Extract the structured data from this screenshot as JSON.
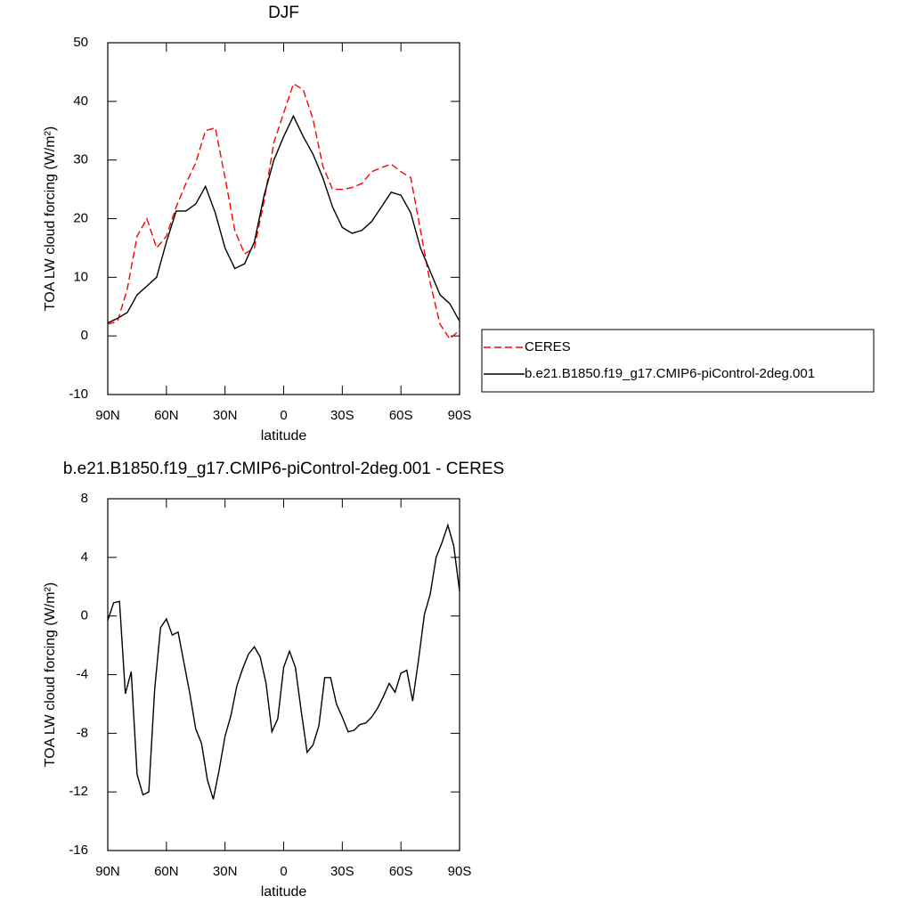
{
  "chart_data": [
    {
      "type": "line",
      "title": "DJF",
      "xlabel": "latitude",
      "ylabel": "TOA LW cloud forcing (W/m²)",
      "x": [
        90,
        85,
        80,
        75,
        70,
        65,
        60,
        55,
        50,
        45,
        40,
        35,
        30,
        25,
        20,
        15,
        10,
        5,
        0,
        -5,
        -10,
        -15,
        -20,
        -25,
        -30,
        -35,
        -40,
        -45,
        -50,
        -55,
        -60,
        -65,
        -70,
        -75,
        -80,
        -85,
        -90
      ],
      "series": [
        {
          "name": "CERES",
          "color": "#ff0000",
          "line_style": "dashed",
          "values": [
            2,
            2.5,
            8,
            17,
            20,
            15,
            17,
            22,
            26,
            29.5,
            35,
            35.5,
            27,
            18,
            14,
            15,
            23,
            33,
            38,
            43,
            42,
            37,
            29,
            25,
            25,
            25.3,
            26,
            28,
            28.7,
            29.3,
            28,
            27,
            18,
            9,
            2,
            -0.5,
            1
          ]
        },
        {
          "name": "b.e21.B1850.f19_g17.CMIP6-piControl-2deg.001",
          "color": "#000000",
          "line_style": "solid",
          "values": [
            2.2,
            3,
            4,
            7,
            8.5,
            10,
            16,
            21.3,
            21.3,
            22.5,
            25.5,
            21,
            15,
            11.5,
            12.3,
            16,
            24,
            30,
            34,
            37.5,
            34,
            31,
            27,
            22,
            18.5,
            17.5,
            18,
            19.5,
            22,
            24.5,
            24,
            21,
            15,
            11,
            7,
            5.5,
            2.5
          ]
        }
      ],
      "xlim": [
        90,
        -90
      ],
      "xticks": [
        {
          "value": 90,
          "label": "90N"
        },
        {
          "value": 60,
          "label": "60N"
        },
        {
          "value": 30,
          "label": "30N"
        },
        0,
        {
          "value": -30,
          "label": "30S"
        },
        {
          "value": -60,
          "label": "60S"
        },
        {
          "value": -90,
          "label": "90S"
        }
      ],
      "ylim": [
        -10,
        50
      ],
      "yticks": [
        -10,
        0,
        10,
        20,
        30,
        40,
        50
      ],
      "legend": "right"
    },
    {
      "type": "line",
      "title": "b.e21.B1850.f19_g17.CMIP6-piControl-2deg.001 - CERES",
      "xlabel": "latitude",
      "ylabel": "TOA LW cloud forcing (W/m²)",
      "x": [
        90,
        87,
        84,
        81,
        78,
        75,
        72,
        69,
        66,
        63,
        60,
        57,
        54,
        51,
        48,
        45,
        42,
        39,
        36,
        33,
        30,
        27,
        24,
        21,
        18,
        15,
        12,
        9,
        6,
        3,
        0,
        -3,
        -6,
        -9,
        -12,
        -15,
        -18,
        -21,
        -24,
        -27,
        -30,
        -33,
        -36,
        -39,
        -42,
        -45,
        -48,
        -51,
        -54,
        -57,
        -60,
        -63,
        -66,
        -69,
        -72,
        -75,
        -78,
        -81,
        -84,
        -87,
        -90
      ],
      "series": [
        {
          "color": "#000000",
          "line_style": "solid",
          "values": [
            -0.3,
            0.9,
            1,
            -5.3,
            -3.8,
            -10.8,
            -12.2,
            -12,
            -5,
            -0.8,
            -0.2,
            -1.3,
            -1.1,
            -3.2,
            -5.3,
            -7.7,
            -8.7,
            -11.2,
            -12.5,
            -10.5,
            -8.2,
            -6.8,
            -4.8,
            -3.6,
            -2.6,
            -2.1,
            -2.8,
            -4.6,
            -7.9,
            -7,
            -3.5,
            -2.4,
            -3.5,
            -6.5,
            -9.3,
            -8.8,
            -7.5,
            -4.2,
            -4.2,
            -6,
            -6.9,
            -7.9,
            -7.8,
            -7.4,
            -7.3,
            -6.9,
            -6.3,
            -5.5,
            -4.6,
            -5.2,
            -3.9,
            -3.7,
            -5.8,
            -3,
            0.1,
            1.5,
            4,
            5,
            6.2,
            4.8,
            1.7
          ]
        }
      ],
      "xlim": [
        90,
        -90
      ],
      "xticks": [
        {
          "value": 90,
          "label": "90N"
        },
        {
          "value": 60,
          "label": "60N"
        },
        {
          "value": 30,
          "label": "30N"
        },
        0,
        {
          "value": -30,
          "label": "30S"
        },
        {
          "value": -60,
          "label": "60S"
        },
        {
          "value": -90,
          "label": "90S"
        }
      ],
      "ylim": [
        -16,
        8
      ],
      "yticks": [
        -16,
        -12,
        -8,
        -4,
        0,
        4,
        8
      ]
    }
  ]
}
